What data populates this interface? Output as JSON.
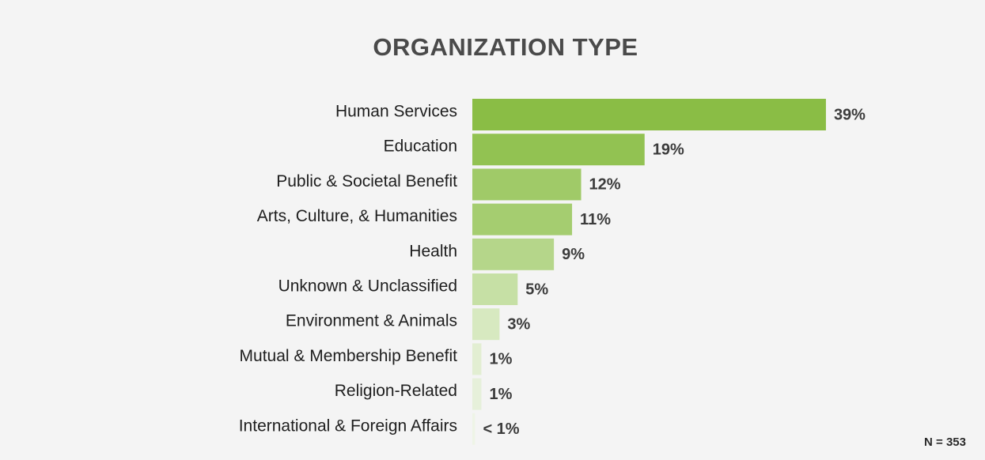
{
  "chart_data": {
    "type": "bar",
    "orientation": "horizontal",
    "title": "ORGANIZATION TYPE",
    "categories": [
      "Human Services",
      "Education",
      "Public & Societal Benefit",
      "Arts, Culture, & Humanities",
      "Health",
      "Unknown & Unclassified",
      "Environment & Animals",
      "Mutual & Membership Benefit",
      "Religion-Related",
      "International & Foreign Affairs"
    ],
    "values": [
      39,
      19,
      12,
      11,
      9,
      5,
      3,
      1,
      1,
      0.3
    ],
    "data_labels": [
      "39%",
      "19%",
      "12%",
      "11%",
      "9%",
      "5%",
      "3%",
      "1%",
      "1%",
      "< 1%"
    ],
    "colors": [
      "#8abd45",
      "#92c252",
      "#a0ca68",
      "#a5cd70",
      "#b5d68a",
      "#c6e0a5",
      "#d7e9c0",
      "#e2eed2",
      "#e6f0da",
      "#eef4e6"
    ],
    "xlabel": "",
    "ylabel": "",
    "grid": false,
    "legend": "none"
  },
  "note": "N = 353"
}
